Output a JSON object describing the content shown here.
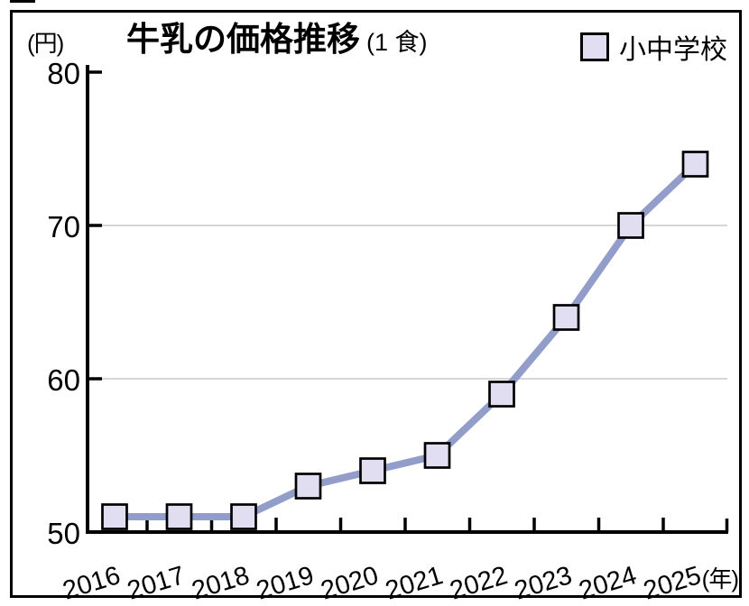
{
  "header": {
    "y_axis_unit": "(円)",
    "title": "牛乳の価格推移",
    "title_note": "(1 食)",
    "legend": {
      "label": "小中学校"
    }
  },
  "footer": {
    "x_axis_unit": "(年)"
  },
  "chart_data": {
    "type": "line",
    "title": "牛乳の価格推移",
    "subtitle": "(1食)",
    "xlabel": "(年)",
    "ylabel": "(円)",
    "categories": [
      "2016",
      "2017",
      "2018",
      "2019",
      "2020",
      "2021",
      "2022",
      "2023",
      "2024",
      "2025"
    ],
    "series": [
      {
        "name": "小中学校",
        "marker": "square",
        "values": [
          51,
          51,
          51,
          53,
          54,
          55,
          59,
          64,
          70,
          74
        ]
      }
    ],
    "ylim": [
      50,
      80
    ],
    "yticks": [
      80,
      70,
      60,
      50
    ],
    "gridlines_at": [
      70,
      60
    ],
    "grid": "horizontal-only",
    "legend_position": "top-right",
    "colors": {
      "line": "#939dc9",
      "marker_fill": "#e0def0",
      "marker_stroke": "#000000",
      "axis": "#000000",
      "grid": "#c9c9c9",
      "text": "#000000",
      "background": "#ffffff",
      "frame_border": "#000000"
    }
  }
}
